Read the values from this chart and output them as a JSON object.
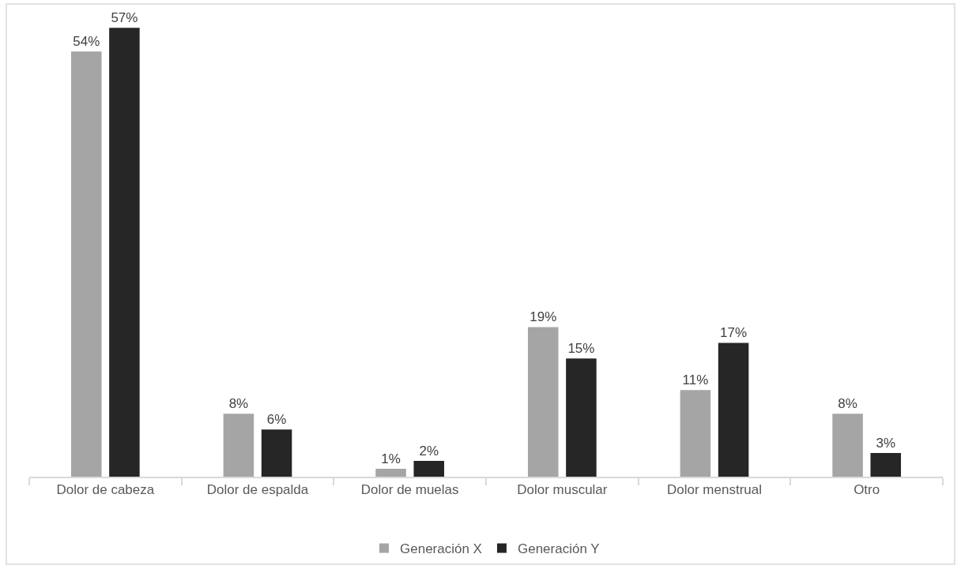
{
  "chart_data": {
    "type": "bar",
    "categories": [
      "Dolor de cabeza",
      "Dolor de espalda",
      "Dolor de muelas",
      "Dolor muscular",
      "Dolor menstrual",
      "Otro"
    ],
    "series": [
      {
        "name": "Generación X",
        "color": "#a5a5a5",
        "values": [
          54,
          8,
          1,
          19,
          11,
          8
        ],
        "value_labels": [
          "54%",
          "8%",
          "1%",
          "19%",
          "11%",
          "8%"
        ]
      },
      {
        "name": "Generación Y",
        "color": "#262626",
        "values": [
          57,
          6,
          2,
          15,
          17,
          3
        ],
        "value_labels": [
          "57%",
          "6%",
          "2%",
          "15%",
          "17%",
          "3%"
        ]
      }
    ],
    "legend": "bottom"
  }
}
